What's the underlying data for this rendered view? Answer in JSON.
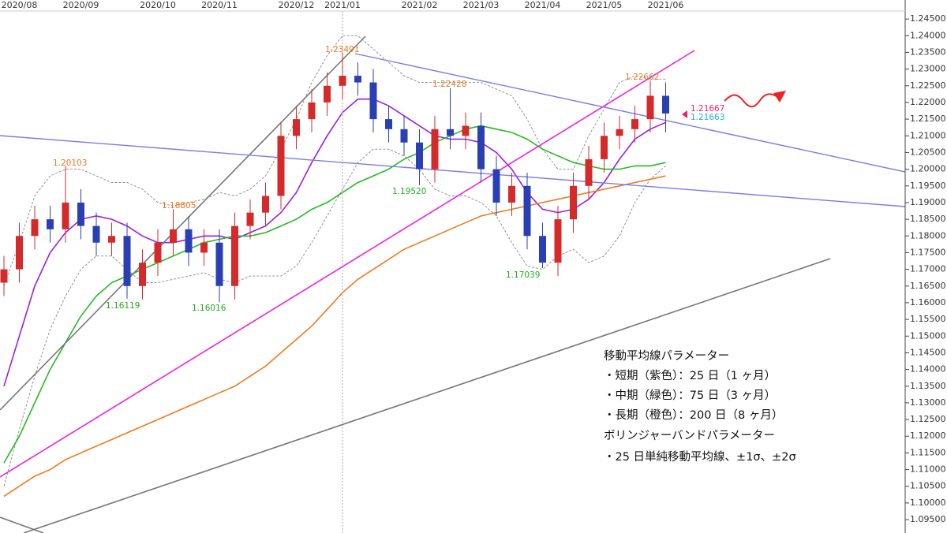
{
  "chart_data": {
    "type": "candlestick",
    "categories": [
      null,
      "2020/08",
      null,
      null,
      null,
      "2020/09",
      null,
      null,
      null,
      null,
      "2020/10",
      null,
      null,
      null,
      "2020/11",
      null,
      null,
      null,
      null,
      "2020/12",
      null,
      null,
      "2021/01",
      null,
      null,
      null,
      null,
      "2021/02",
      null,
      null,
      null,
      "2021/03",
      null,
      null,
      null,
      "2021/04",
      null,
      null,
      null,
      "2021/05",
      null,
      null,
      null,
      "2021/06"
    ],
    "open": [
      1.166,
      1.17,
      1.18,
      1.185,
      1.182,
      1.19,
      1.183,
      1.178,
      1.18,
      1.165,
      1.172,
      1.178,
      1.182,
      1.175,
      1.178,
      1.165,
      1.183,
      1.187,
      1.192,
      1.21,
      1.215,
      1.22,
      1.225,
      1.228,
      1.226,
      1.215,
      1.212,
      1.208,
      1.2,
      1.212,
      1.21,
      1.213,
      1.2,
      1.19,
      1.195,
      1.18,
      1.172,
      1.185,
      1.195,
      1.203,
      1.21,
      1.212,
      1.215,
      1.222
    ],
    "high": [
      1.174,
      1.184,
      1.189,
      1.189,
      1.201,
      1.194,
      1.187,
      1.184,
      1.184,
      1.176,
      1.182,
      1.18805,
      1.186,
      1.182,
      1.182,
      1.187,
      1.191,
      1.196,
      1.214,
      1.219,
      1.224,
      1.229,
      1.23491,
      1.232,
      1.23,
      1.219,
      1.216,
      1.212,
      1.216,
      1.22428,
      1.217,
      1.217,
      1.204,
      1.199,
      1.199,
      1.184,
      1.189,
      1.199,
      1.207,
      1.214,
      1.216,
      1.219,
      1.22662,
      1.226
    ],
    "low": [
      1.162,
      1.166,
      1.176,
      1.178,
      1.178,
      1.179,
      1.174,
      1.174,
      1.16119,
      1.161,
      1.168,
      1.174,
      1.171,
      1.171,
      1.16016,
      1.161,
      1.179,
      1.183,
      1.188,
      1.206,
      1.211,
      1.216,
      1.221,
      1.222,
      1.211,
      1.208,
      1.204,
      1.1952,
      1.196,
      1.206,
      1.206,
      1.196,
      1.186,
      1.186,
      1.176,
      1.17039,
      1.168,
      1.181,
      1.191,
      1.199,
      1.206,
      1.208,
      1.211,
      1.211
    ],
    "close": [
      1.17,
      1.18,
      1.185,
      1.182,
      1.19,
      1.183,
      1.178,
      1.18,
      1.165,
      1.172,
      1.178,
      1.182,
      1.175,
      1.178,
      1.165,
      1.183,
      1.187,
      1.192,
      1.21,
      1.215,
      1.22,
      1.225,
      1.228,
      1.226,
      1.215,
      1.212,
      1.208,
      1.2,
      1.212,
      1.21,
      1.213,
      1.2,
      1.19,
      1.195,
      1.18,
      1.172,
      1.185,
      1.195,
      1.203,
      1.21,
      1.212,
      1.215,
      1.222,
      1.2167
    ],
    "up_color": "#d42a2a",
    "down_color": "#2b3fb5",
    "lines": [
      {
        "color": "#9b1fd6",
        "dashed": false,
        "values": [
          1.135,
          1.15,
          1.165,
          1.175,
          1.181,
          1.185,
          1.186,
          1.185,
          1.183,
          1.18,
          1.178,
          1.178,
          1.179,
          1.18,
          1.18,
          1.179,
          1.181,
          1.183,
          1.187,
          1.193,
          1.202,
          1.21,
          1.217,
          1.221,
          1.221,
          1.219,
          1.216,
          1.213,
          1.21,
          1.209,
          1.209,
          1.208,
          1.205,
          1.2,
          1.193,
          1.188,
          1.187,
          1.188,
          1.191,
          1.196,
          1.203,
          1.209,
          1.212,
          1.214
        ]
      },
      {
        "color": "#22bb22",
        "dashed": false,
        "values": [
          1.112,
          1.12,
          1.13,
          1.14,
          1.148,
          1.156,
          1.162,
          1.166,
          1.168,
          1.17,
          1.172,
          1.174,
          1.176,
          1.178,
          1.179,
          1.18,
          1.18,
          1.181,
          1.183,
          1.185,
          1.188,
          1.19,
          1.193,
          1.196,
          1.198,
          1.2,
          1.203,
          1.205,
          1.208,
          1.21,
          1.212,
          1.213,
          1.212,
          1.211,
          1.209,
          1.206,
          1.204,
          1.202,
          1.201,
          1.2,
          1.2,
          1.201,
          1.201,
          1.202
        ]
      },
      {
        "color": "#f07a1e",
        "dashed": false,
        "values": [
          1.102,
          1.105,
          1.108,
          1.11,
          1.113,
          1.115,
          1.117,
          1.119,
          1.121,
          1.123,
          1.125,
          1.127,
          1.129,
          1.131,
          1.133,
          1.135,
          1.138,
          1.141,
          1.145,
          1.149,
          1.153,
          1.158,
          1.163,
          1.167,
          1.17,
          1.173,
          1.176,
          1.178,
          1.18,
          1.182,
          1.184,
          1.186,
          1.187,
          1.188,
          1.189,
          1.19,
          1.191,
          1.192,
          1.193,
          1.194,
          1.195,
          1.196,
          1.197,
          1.198
        ]
      },
      {
        "color": "#888888",
        "dashed": true,
        "values": [
          1.165,
          1.178,
          1.192,
          1.198,
          1.2,
          1.2,
          1.198,
          1.196,
          1.196,
          1.194,
          1.19,
          1.189,
          1.19,
          1.191,
          1.193,
          1.192,
          1.194,
          1.198,
          1.206,
          1.215,
          1.226,
          1.234,
          1.24,
          1.24,
          1.236,
          1.232,
          1.228,
          1.226,
          1.226,
          1.226,
          1.226,
          1.226,
          1.224,
          1.222,
          1.215,
          1.206,
          1.2,
          1.2,
          1.21,
          1.218,
          1.226,
          1.228,
          1.227,
          1.227
        ]
      },
      {
        "color": "#888888",
        "dashed": true,
        "values": [
          1.105,
          1.122,
          1.138,
          1.152,
          1.162,
          1.17,
          1.174,
          1.174,
          1.17,
          1.166,
          1.166,
          1.167,
          1.168,
          1.169,
          1.167,
          1.166,
          1.168,
          1.168,
          1.168,
          1.171,
          1.178,
          1.186,
          1.194,
          1.202,
          1.206,
          1.206,
          1.204,
          1.2,
          1.194,
          1.192,
          1.192,
          1.19,
          1.186,
          1.178,
          1.171,
          1.17,
          1.174,
          1.176,
          1.172,
          1.174,
          1.18,
          1.19,
          1.197,
          1.201
        ]
      }
    ],
    "ylim": [
      1.091,
      1.2507
    ],
    "yticks": [
      {
        "value": 1.245,
        "label": "1.24500"
      },
      {
        "value": 1.24,
        "label": "1.24000"
      },
      {
        "value": 1.235,
        "label": "1.23500"
      },
      {
        "value": 1.23,
        "label": "1.23000"
      },
      {
        "value": 1.225,
        "label": "1.22500"
      },
      {
        "value": 1.22,
        "label": "1.22000"
      },
      {
        "value": 1.215,
        "label": "1.21500"
      },
      {
        "value": 1.21,
        "label": "1.21000"
      },
      {
        "value": 1.205,
        "label": "1.20500"
      },
      {
        "value": 1.2,
        "label": "1.20000"
      },
      {
        "value": 1.195,
        "label": "1.19500"
      },
      {
        "value": 1.19,
        "label": "1.19000"
      },
      {
        "value": 1.185,
        "label": "1.18500"
      },
      {
        "value": 1.18,
        "label": "1.18000"
      },
      {
        "value": 1.175,
        "label": "1.17500"
      },
      {
        "value": 1.17,
        "label": "1.17000"
      },
      {
        "value": 1.165,
        "label": "1.16500"
      },
      {
        "value": 1.16,
        "label": "1.16000"
      },
      {
        "value": 1.155,
        "label": "1.15500"
      },
      {
        "value": 1.15,
        "label": "1.15000"
      },
      {
        "value": 1.145,
        "label": "1.14500"
      },
      {
        "value": 1.14,
        "label": "1.14000"
      },
      {
        "value": 1.135,
        "label": "1.13500"
      },
      {
        "value": 1.13,
        "label": "1.13000"
      },
      {
        "value": 1.125,
        "label": "1.12500"
      },
      {
        "value": 1.12,
        "label": "1.12000"
      },
      {
        "value": 1.115,
        "label": "1.11500"
      },
      {
        "value": 1.11,
        "label": "1.11000"
      },
      {
        "value": 1.105,
        "label": "1.10500"
      },
      {
        "value": 1.1,
        "label": "1.10000"
      },
      {
        "value": 1.095,
        "label": "1.09500"
      }
    ],
    "annotations": [
      "1.23491",
      "1.22428",
      "1.20103",
      "1.18805",
      "1.22662",
      "1.19520",
      "1.16119",
      "1.16016",
      "1.17039",
      "1.21667",
      "1.21663"
    ],
    "notes": [
      "移動平均線パラメーター",
      "・短期（紫色）：25 日（1 ヶ月）",
      "・中期（緑色）：75 日（3 ヶ月）",
      "・長期（橙色）：200 日（8 ヶ月）",
      "ボリンジャーバンドパラメーター",
      "・25 日単純移動平均線、±1σ、±2σ"
    ]
  }
}
